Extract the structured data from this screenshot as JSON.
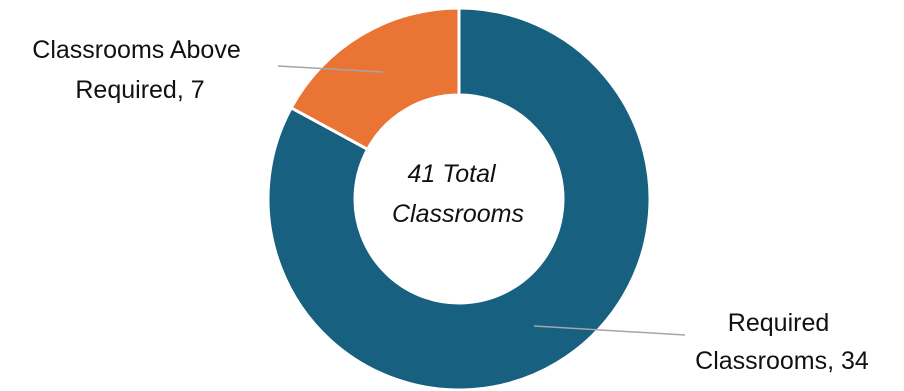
{
  "chart_data": {
    "type": "pie",
    "variant": "donut",
    "center_text": [
      "41 Total",
      "Classrooms"
    ],
    "slices": [
      {
        "name": "Required Classrooms",
        "value": 34,
        "color": "#17607f",
        "label_lines": [
          "Required",
          "Classrooms, 34"
        ]
      },
      {
        "name": "Classrooms Above Required",
        "value": 7,
        "color": "#ea7434",
        "label_lines": [
          "Classrooms Above",
          "Required, 7"
        ]
      }
    ],
    "legend": "none",
    "start_angle": "12 o'clock",
    "direction": "clockwise"
  }
}
